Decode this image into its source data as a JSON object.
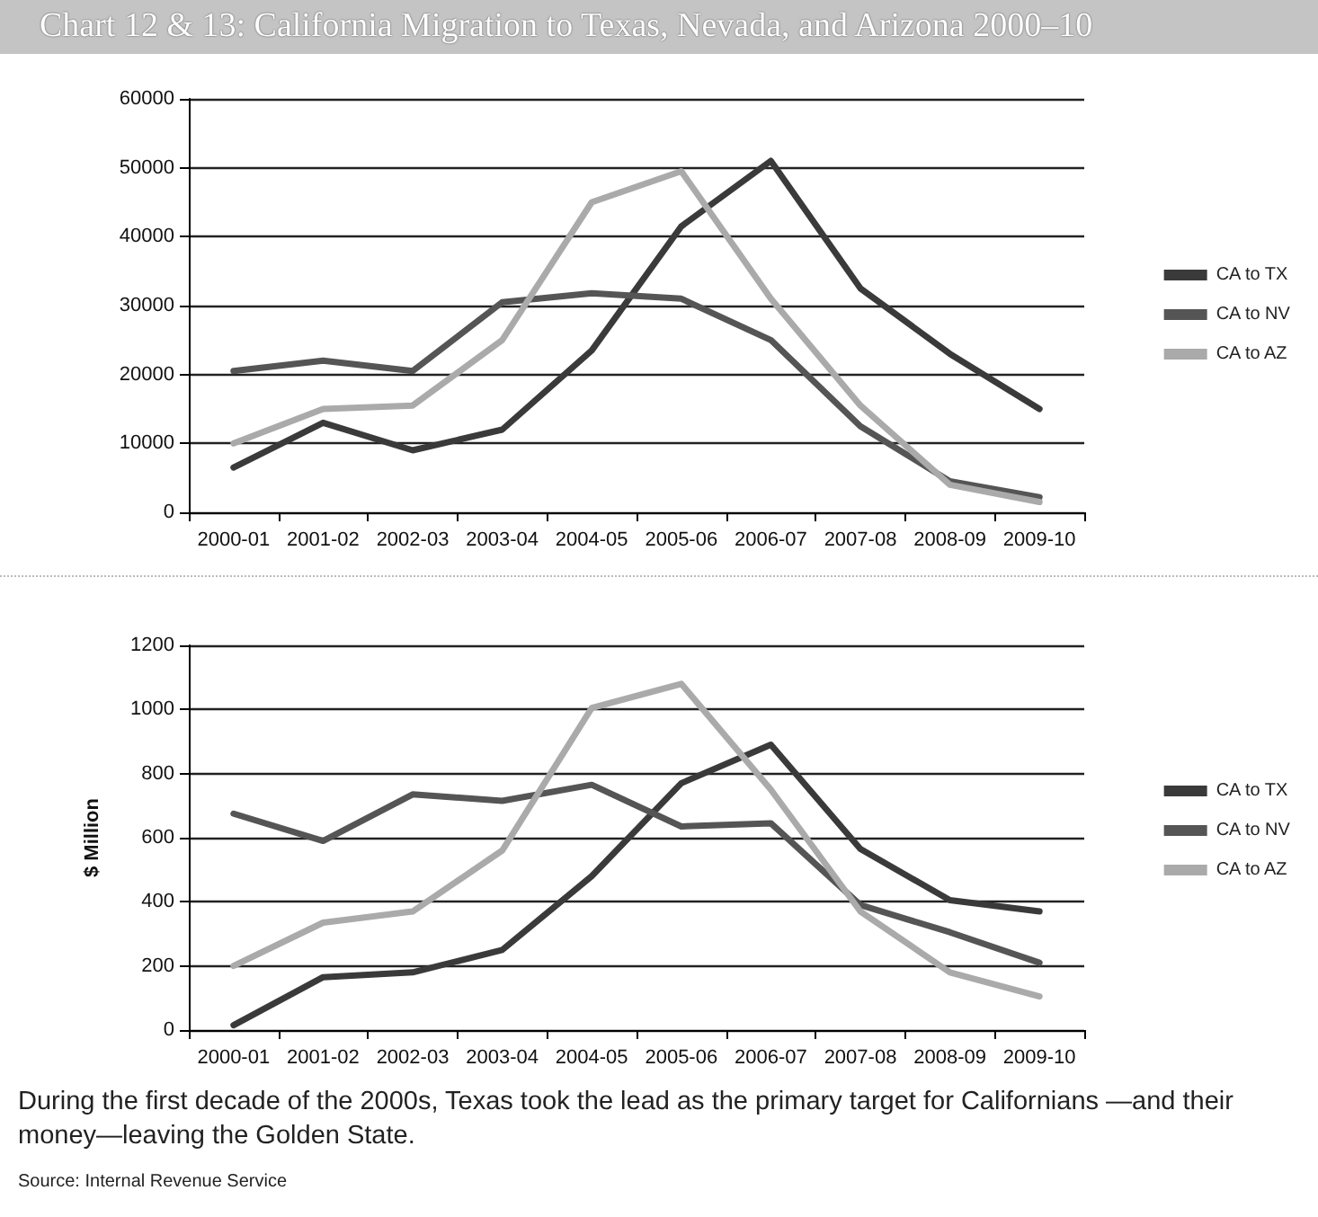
{
  "chart_data": [
    {
      "type": "line",
      "title": "Chart 12 & 13: California Migration to Texas, Nevada, and Arizona 2000–10",
      "categories": [
        "2000-01",
        "2001-02",
        "2002-03",
        "2003-04",
        "2004-05",
        "2005-06",
        "2006-07",
        "2007-08",
        "2008-09",
        "2009-10"
      ],
      "series": [
        {
          "name": "CA to TX",
          "color": "#3a3a3a",
          "values": [
            6500,
            13000,
            9000,
            12000,
            23500,
            41500,
            51000,
            32500,
            23000,
            15000
          ]
        },
        {
          "name": "CA to NV",
          "color": "#555555",
          "values": [
            20500,
            22000,
            20500,
            30500,
            31800,
            31000,
            25000,
            12500,
            4500,
            2200
          ]
        },
        {
          "name": "CA to AZ",
          "color": "#aaaaaa",
          "values": [
            10000,
            15000,
            15500,
            25000,
            45000,
            49500,
            31000,
            15500,
            4000,
            1500
          ]
        }
      ],
      "ylim": [
        0,
        60000
      ],
      "yticks": [
        0,
        10000,
        20000,
        30000,
        40000,
        50000,
        60000
      ],
      "grid": "y",
      "legend": "right",
      "marker": "none",
      "line_style": "solid"
    },
    {
      "type": "line",
      "ylabel": "$ Million",
      "categories": [
        "2000-01",
        "2001-02",
        "2002-03",
        "2003-04",
        "2004-05",
        "2005-06",
        "2006-07",
        "2007-08",
        "2008-09",
        "2009-10"
      ],
      "series": [
        {
          "name": "CA to TX",
          "color": "#3a3a3a",
          "values": [
            15,
            165,
            180,
            250,
            480,
            770,
            890,
            565,
            405,
            370
          ]
        },
        {
          "name": "CA to NV",
          "color": "#555555",
          "values": [
            675,
            590,
            735,
            715,
            765,
            635,
            645,
            390,
            305,
            210
          ]
        },
        {
          "name": "CA to AZ",
          "color": "#aaaaaa",
          "values": [
            200,
            335,
            370,
            560,
            1005,
            1080,
            750,
            370,
            180,
            105
          ]
        }
      ],
      "ylim": [
        0,
        1200
      ],
      "yticks": [
        0,
        200,
        400,
        600,
        800,
        1000,
        1200
      ],
      "grid": "y",
      "legend": "right",
      "marker": "none",
      "line_style": "solid",
      "annotations": [
        "During the first decade of the 2000s, Texas took the lead as the primary target for Californians —and their money—leaving the Golden State.",
        "Source: Internal Revenue Service"
      ]
    }
  ]
}
